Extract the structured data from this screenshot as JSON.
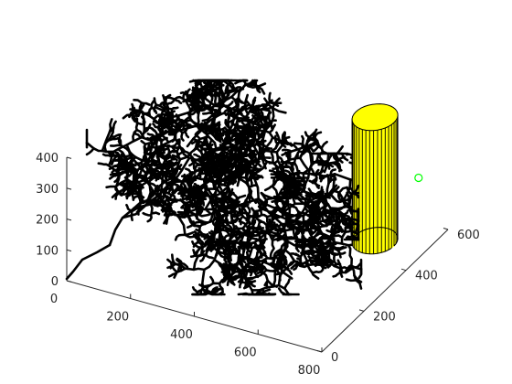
{
  "chart_data": {
    "type": "scatter",
    "title": "",
    "xlabel": "",
    "ylabel": "",
    "zlabel": "",
    "xlim": [
      0,
      800
    ],
    "ylim": [
      0,
      600
    ],
    "zlim": [
      0,
      400
    ],
    "x_ticks": [
      "0",
      "200",
      "400",
      "600",
      "800"
    ],
    "y_ticks": [
      "0",
      "200",
      "400",
      "600"
    ],
    "z_ticks": [
      "0",
      "100",
      "200",
      "300",
      "400"
    ],
    "grid": false,
    "colors": {
      "tree": "#000000",
      "cylinder_fill": "#ffff00",
      "marker": "#00ff00",
      "axes": "#262626"
    },
    "cylinder": {
      "center_x": 650,
      "center_y": 480,
      "radius": 60,
      "z_range": [
        0,
        400
      ]
    },
    "marker": {
      "x": 800,
      "y": 460,
      "z": 260
    }
  }
}
